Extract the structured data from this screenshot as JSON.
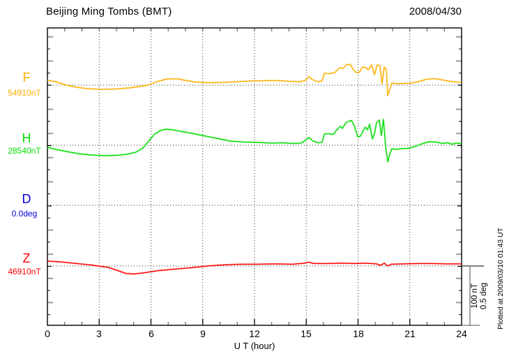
{
  "header": {
    "title": "Beijing Ming Tombs (BMT)",
    "date": "2008/04/30"
  },
  "x_axis": {
    "label": "U T (hour)",
    "ticks": [
      "0",
      "3",
      "6",
      "9",
      "12",
      "15",
      "18",
      "21",
      "24"
    ]
  },
  "scale_bar": {
    "line1": "100 nT",
    "line2": "0.5 deg"
  },
  "footer_note": "Plotted at 2009/03/10 01:43 UT",
  "chart_data": {
    "type": "line",
    "title": "Beijing Ming Tombs (BMT)",
    "date": "2008/04/30",
    "xlabel": "U T (hour)",
    "x_range_hours": [
      0,
      24
    ],
    "x_grid_hours": [
      3,
      6,
      9,
      12,
      15,
      18,
      21
    ],
    "grid": "dotted",
    "scale_note": "scale bar = 100 nT (F,H,Z) / 0.5 deg (D)",
    "series": [
      {
        "id": "F",
        "label": "F",
        "baseline_label": "54910nT",
        "baseline_value": 54910,
        "units": "nT",
        "color": "#FFAE00",
        "points": [
          [
            0,
            8.2
          ],
          [
            0.48,
            5.8
          ],
          [
            1.09,
            0
          ],
          [
            1.7,
            -3.5
          ],
          [
            2.3,
            -5.8
          ],
          [
            3.11,
            -7
          ],
          [
            3.92,
            -6.4
          ],
          [
            4.73,
            -4.7
          ],
          [
            5.33,
            -2.3
          ],
          [
            5.82,
            0
          ],
          [
            6.34,
            5.8
          ],
          [
            6.95,
            10.5
          ],
          [
            7.56,
            10.5
          ],
          [
            7.96,
            8.2
          ],
          [
            8.57,
            5.3
          ],
          [
            9.37,
            4.1
          ],
          [
            10.18,
            4.7
          ],
          [
            10.99,
            5.8
          ],
          [
            11.8,
            7
          ],
          [
            12.61,
            7.6
          ],
          [
            13.41,
            7.6
          ],
          [
            14.02,
            6.4
          ],
          [
            14.63,
            5.8
          ],
          [
            14.95,
            8.2
          ],
          [
            15.15,
            14
          ],
          [
            15.35,
            9.4
          ],
          [
            15.64,
            5.8
          ],
          [
            15.92,
            7
          ],
          [
            16.04,
            19.9
          ],
          [
            16.32,
            19.3
          ],
          [
            16.65,
            21.1
          ],
          [
            16.93,
            29.2
          ],
          [
            17.13,
            28.1
          ],
          [
            17.33,
            33.9
          ],
          [
            17.54,
            35.1
          ],
          [
            17.74,
            25.7
          ],
          [
            17.9,
            21.1
          ],
          [
            18.1,
            22.2
          ],
          [
            18.26,
            30.4
          ],
          [
            18.46,
            29.2
          ],
          [
            18.59,
            25.7
          ],
          [
            18.79,
            33.9
          ],
          [
            18.95,
            17.5
          ],
          [
            19.11,
            33.9
          ],
          [
            19.27,
            32.7
          ],
          [
            19.39,
            2.3
          ],
          [
            19.52,
            30.4
          ],
          [
            19.64,
            25.7
          ],
          [
            19.72,
            -17.5
          ],
          [
            19.84,
            -7
          ],
          [
            19.96,
            3.5
          ],
          [
            20.28,
            2.3
          ],
          [
            20.69,
            2.9
          ],
          [
            21.09,
            3.5
          ],
          [
            21.49,
            5.8
          ],
          [
            21.98,
            9.9
          ],
          [
            22.38,
            11.1
          ],
          [
            22.79,
            9.4
          ],
          [
            23.31,
            6.4
          ],
          [
            23.72,
            5.3
          ],
          [
            24,
            4.7
          ]
        ]
      },
      {
        "id": "H",
        "label": "H",
        "baseline_label": "28540nT",
        "baseline_value": 28540,
        "units": "nT",
        "color": "#00DD00",
        "points": [
          [
            0,
            -3.5
          ],
          [
            0.48,
            -7
          ],
          [
            1.09,
            -10.5
          ],
          [
            1.78,
            -14
          ],
          [
            2.51,
            -16.4
          ],
          [
            3.31,
            -17.5
          ],
          [
            4.04,
            -17
          ],
          [
            4.61,
            -15.2
          ],
          [
            5.13,
            -11.7
          ],
          [
            5.54,
            -4.7
          ],
          [
            5.94,
            9.4
          ],
          [
            6.22,
            18.7
          ],
          [
            6.55,
            24.6
          ],
          [
            6.87,
            26.9
          ],
          [
            7.27,
            25.7
          ],
          [
            7.68,
            23.4
          ],
          [
            8.16,
            21.1
          ],
          [
            8.77,
            17.5
          ],
          [
            9.37,
            14
          ],
          [
            9.98,
            10.5
          ],
          [
            10.59,
            7
          ],
          [
            11.39,
            5.3
          ],
          [
            12.2,
            4.7
          ],
          [
            13.01,
            3.5
          ],
          [
            13.62,
            4.1
          ],
          [
            14.22,
            2.9
          ],
          [
            14.71,
            3.5
          ],
          [
            14.95,
            8.2
          ],
          [
            15.15,
            12.9
          ],
          [
            15.39,
            7
          ],
          [
            15.68,
            4.1
          ],
          [
            15.92,
            4.7
          ],
          [
            16.04,
            18.7
          ],
          [
            16.28,
            19.3
          ],
          [
            16.57,
            18.1
          ],
          [
            16.77,
            25.7
          ],
          [
            16.97,
            31.6
          ],
          [
            17.09,
            28.1
          ],
          [
            17.29,
            37.4
          ],
          [
            17.45,
            39.8
          ],
          [
            17.62,
            41.5
          ],
          [
            17.78,
            32.7
          ],
          [
            17.98,
            14
          ],
          [
            18.14,
            15.2
          ],
          [
            18.26,
            22.2
          ],
          [
            18.42,
            30.4
          ],
          [
            18.55,
            25.7
          ],
          [
            18.67,
            35.1
          ],
          [
            18.83,
            10.5
          ],
          [
            18.95,
            18.7
          ],
          [
            19.07,
            37.4
          ],
          [
            19.23,
            42.1
          ],
          [
            19.35,
            16.4
          ],
          [
            19.47,
            43.3
          ],
          [
            19.6,
            -2.3
          ],
          [
            19.72,
            -28.1
          ],
          [
            19.84,
            -15.2
          ],
          [
            19.96,
            -5.8
          ],
          [
            20.2,
            -7
          ],
          [
            20.48,
            -5.8
          ],
          [
            20.89,
            -5.3
          ],
          [
            21.29,
            -2.3
          ],
          [
            21.7,
            2.3
          ],
          [
            22.1,
            5.8
          ],
          [
            22.51,
            5.3
          ],
          [
            22.91,
            2.9
          ],
          [
            23.19,
            4.1
          ],
          [
            23.43,
            1.8
          ],
          [
            23.72,
            3.5
          ],
          [
            24,
            2.3
          ]
        ]
      },
      {
        "id": "D",
        "label": "D",
        "baseline_label": "0.0deg",
        "baseline_value": 0.0,
        "units": "deg",
        "color": "#0000DD",
        "points": []
      },
      {
        "id": "Z",
        "label": "Z",
        "baseline_label": "46910nT",
        "baseline_value": 46910,
        "units": "nT",
        "color": "#FF0000",
        "points": [
          [
            0,
            8.2
          ],
          [
            0.69,
            7
          ],
          [
            1.49,
            4.7
          ],
          [
            2.51,
            1.8
          ],
          [
            3.52,
            -2.3
          ],
          [
            4.12,
            -8.2
          ],
          [
            4.53,
            -12.3
          ],
          [
            5.01,
            -13.5
          ],
          [
            5.54,
            -11.7
          ],
          [
            6.34,
            -8.2
          ],
          [
            7.35,
            -5.3
          ],
          [
            8.36,
            -2.9
          ],
          [
            9.29,
            0
          ],
          [
            10.18,
            1.8
          ],
          [
            11.19,
            2.9
          ],
          [
            12.2,
            2.9
          ],
          [
            13.21,
            3.5
          ],
          [
            14.22,
            2.9
          ],
          [
            14.91,
            4.7
          ],
          [
            15.15,
            6.4
          ],
          [
            15.43,
            4.1
          ],
          [
            16.24,
            4.1
          ],
          [
            17.05,
            4.7
          ],
          [
            17.86,
            4.1
          ],
          [
            18.46,
            4.7
          ],
          [
            19.07,
            3.5
          ],
          [
            19.31,
            1.2
          ],
          [
            19.52,
            4.7
          ],
          [
            19.72,
            0
          ],
          [
            19.92,
            2.9
          ],
          [
            20.69,
            3.5
          ],
          [
            21.49,
            4.1
          ],
          [
            22.3,
            4.1
          ],
          [
            23.11,
            3.5
          ],
          [
            24,
            3.5
          ]
        ]
      }
    ]
  }
}
